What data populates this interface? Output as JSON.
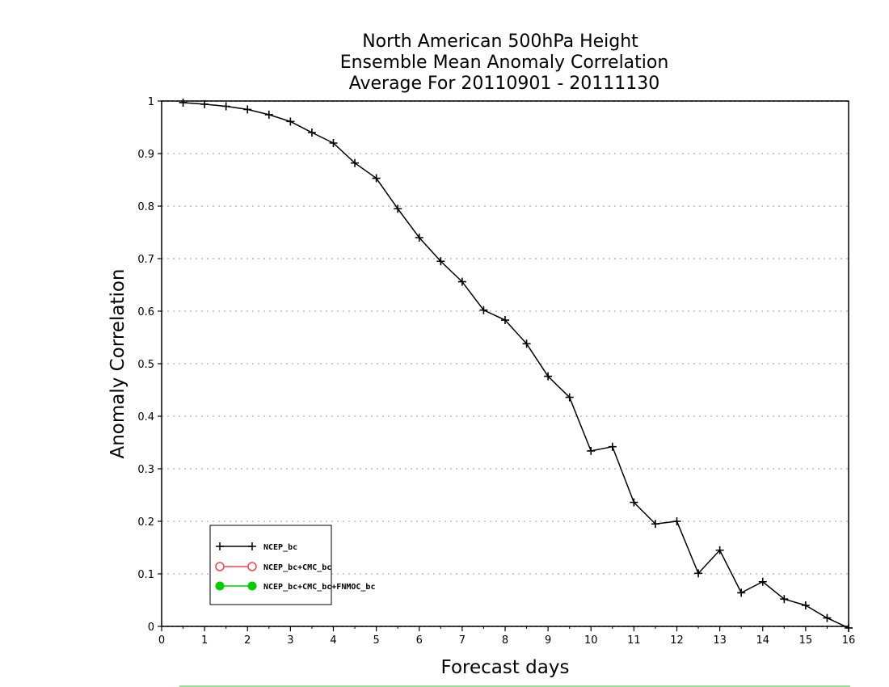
{
  "chart_data": {
    "type": "line",
    "title_lines": [
      "North American 500hPa Height",
      "Ensemble Mean Anomaly Correlation",
      "Average For 20110901 - 20111130"
    ],
    "xlabel": "Forecast days",
    "ylabel": "Anomaly Correlation",
    "xlim": [
      0,
      16
    ],
    "ylim": [
      0,
      1
    ],
    "x_ticks": [
      0,
      1,
      2,
      3,
      4,
      5,
      6,
      7,
      8,
      9,
      10,
      11,
      12,
      13,
      14,
      15,
      16
    ],
    "y_ticks": [
      0,
      0.1,
      0.2,
      0.3,
      0.4,
      0.5,
      0.6,
      0.7,
      0.8,
      0.9,
      1
    ],
    "y_tick_labels": [
      "0",
      "0.1",
      "0.2",
      "0.3",
      "0.4",
      "0.5",
      "0.6",
      "0.7",
      "0.8",
      "0.9",
      "1"
    ],
    "grid": "horizontal dotted",
    "legend_position": "bottom-left",
    "series": [
      {
        "name": "NCEP_bc",
        "color": "#000000",
        "marker": "plus",
        "x": [
          0.5,
          1,
          1.5,
          2,
          2.5,
          3,
          3.5,
          4,
          4.5,
          5,
          5.5,
          6,
          6.5,
          7,
          7.5,
          8,
          8.5,
          9,
          9.5,
          10,
          10.5,
          11,
          11.5,
          12,
          12.5,
          13,
          13.5,
          14,
          14.5,
          15,
          15.5,
          16
        ],
        "y": [
          0.997,
          0.994,
          0.99,
          0.984,
          0.974,
          0.961,
          0.94,
          0.92,
          0.882,
          0.853,
          0.795,
          0.74,
          0.695,
          0.656,
          0.602,
          0.583,
          0.538,
          0.476,
          0.436,
          0.334,
          0.342,
          0.236,
          0.195,
          0.2,
          0.101,
          0.145,
          0.064,
          0.085,
          0.052,
          0.04,
          0.016,
          -0.003
        ]
      },
      {
        "name": "NCEP_bc+CMC_bc",
        "color": "#ff4040",
        "marker": "circle-open",
        "x": [],
        "y": []
      },
      {
        "name": "NCEP_bc+CMC_bc+FNMOC_bc",
        "color": "#00cc00",
        "marker": "circle-filled",
        "x": [],
        "y": []
      }
    ]
  }
}
